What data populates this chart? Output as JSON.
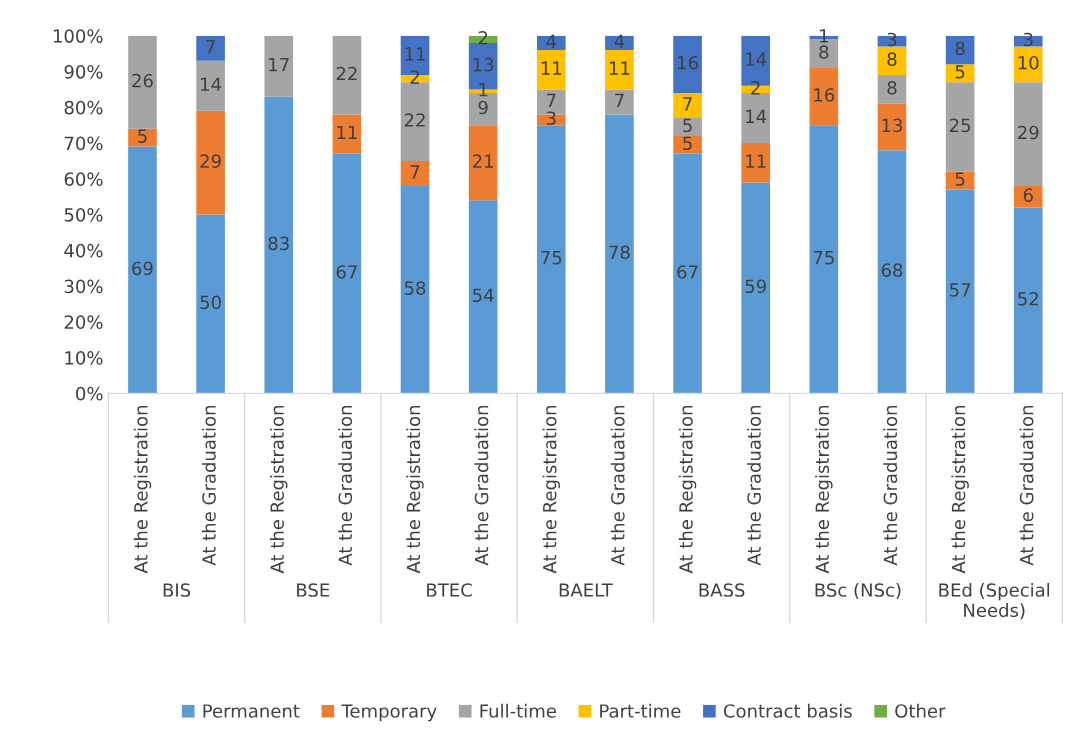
{
  "chart_data": {
    "type": "bar",
    "stacked": true,
    "data_labels": true,
    "grid": false,
    "legend": "bottom",
    "categories": [
      "At the Registration",
      "At the Graduation",
      "At the Registration",
      "At the Graduation",
      "At the Registration",
      "At the Graduation",
      "At the Registration",
      "At the Graduation",
      "At the Registration",
      "At the Graduation",
      "At the Registration",
      "At the Graduation",
      "At the Registration",
      "At the Graduation"
    ],
    "annotations": [
      "BIS",
      "BSE",
      "BTEC",
      "BAELT",
      "BASS",
      "BSc (NSc)",
      "BEd (Special Needs)"
    ],
    "ylim": [
      0,
      100
    ],
    "yticks": [
      {
        "value": 0,
        "label": "0%"
      },
      {
        "value": 10,
        "label": "10%"
      },
      {
        "value": 20,
        "label": "20%"
      },
      {
        "value": 30,
        "label": "30%"
      },
      {
        "value": 40,
        "label": "40%"
      },
      {
        "value": 50,
        "label": "50%"
      },
      {
        "value": 60,
        "label": "60%"
      },
      {
        "value": 70,
        "label": "70%"
      },
      {
        "value": 80,
        "label": "80%"
      },
      {
        "value": 90,
        "label": "90%"
      },
      {
        "value": 100,
        "label": "100%"
      }
    ],
    "series": [
      {
        "name": "Permanent",
        "color": "#5b9bd5",
        "values": [
          69,
          50,
          83,
          67,
          58,
          54,
          75,
          78,
          67,
          59,
          75,
          68,
          57,
          52
        ]
      },
      {
        "name": "Temporary",
        "color": "#ed7d31",
        "values": [
          5,
          29,
          null,
          11,
          7,
          21,
          3,
          null,
          5,
          11,
          16,
          13,
          5,
          6
        ]
      },
      {
        "name": "Full-time",
        "color": "#a5a5a5",
        "values": [
          26,
          14,
          17,
          22,
          22,
          9,
          7,
          7,
          5,
          14,
          8,
          8,
          25,
          29
        ]
      },
      {
        "name": "Part-time",
        "color": "#ffc000",
        "values": [
          null,
          null,
          null,
          null,
          2,
          1,
          11,
          11,
          7,
          2,
          null,
          8,
          5,
          10
        ]
      },
      {
        "name": "Contract basis",
        "color": "#4472c4",
        "values": [
          null,
          7,
          null,
          null,
          11,
          13,
          4,
          4,
          16,
          14,
          1,
          3,
          8,
          3
        ]
      },
      {
        "name": "Other",
        "color": "#70ad47",
        "values": [
          null,
          null,
          null,
          null,
          null,
          2,
          null,
          null,
          null,
          null,
          null,
          null,
          null,
          null
        ]
      }
    ]
  }
}
